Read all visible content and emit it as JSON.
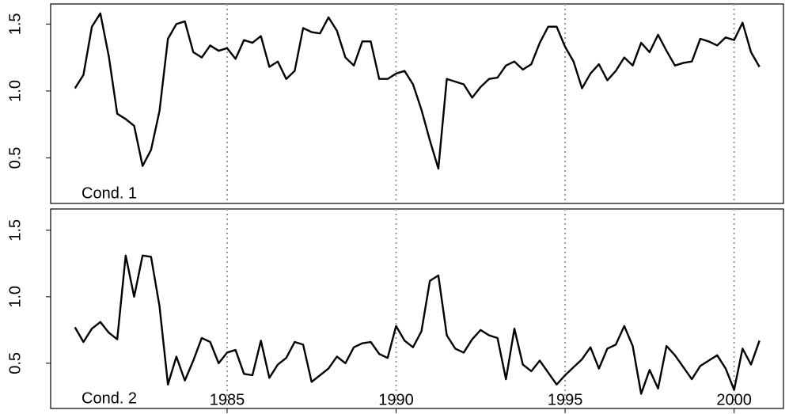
{
  "chart_data": [
    {
      "type": "line",
      "label": "Cond. 1",
      "color": "#000000",
      "x": [
        1980.5,
        1980.75,
        1981,
        1981.25,
        1981.5,
        1981.75,
        1982,
        1982.25,
        1982.5,
        1982.75,
        1983,
        1983.25,
        1983.5,
        1983.75,
        1984,
        1984.25,
        1984.5,
        1984.75,
        1985,
        1985.25,
        1985.5,
        1985.75,
        1986,
        1986.25,
        1986.5,
        1986.75,
        1987,
        1987.25,
        1987.5,
        1987.75,
        1988,
        1988.25,
        1988.5,
        1988.75,
        1989,
        1989.25,
        1989.5,
        1989.75,
        1990,
        1990.25,
        1990.5,
        1990.75,
        1991,
        1991.25,
        1991.5,
        1991.75,
        1992,
        1992.25,
        1992.5,
        1992.75,
        1993,
        1993.25,
        1993.5,
        1993.75,
        1994,
        1994.25,
        1994.5,
        1994.75,
        1995,
        1995.25,
        1995.5,
        1995.75,
        1996,
        1996.25,
        1996.5,
        1996.75,
        1997,
        1997.25,
        1997.5,
        1997.75,
        1998,
        1998.25,
        1998.5,
        1998.75,
        1999,
        1999.25,
        1999.5,
        1999.75,
        2000,
        2000.25,
        2000.5,
        2000.75
      ],
      "values": [
        1.02,
        1.12,
        1.48,
        1.58,
        1.26,
        0.83,
        0.79,
        0.74,
        0.44,
        0.56,
        0.85,
        1.39,
        1.5,
        1.52,
        1.29,
        1.25,
        1.34,
        1.3,
        1.32,
        1.24,
        1.38,
        1.36,
        1.41,
        1.18,
        1.22,
        1.09,
        1.15,
        1.47,
        1.44,
        1.43,
        1.55,
        1.45,
        1.25,
        1.19,
        1.37,
        1.37,
        1.09,
        1.09,
        1.13,
        1.15,
        1.05,
        0.86,
        0.63,
        0.42,
        1.09,
        1.07,
        1.05,
        0.95,
        1.03,
        1.09,
        1.1,
        1.19,
        1.22,
        1.16,
        1.2,
        1.36,
        1.48,
        1.48,
        1.33,
        1.22,
        1.02,
        1.13,
        1.2,
        1.08,
        1.15,
        1.25,
        1.19,
        1.36,
        1.29,
        1.42,
        1.3,
        1.19,
        1.21,
        1.22,
        1.39,
        1.37,
        1.34,
        1.4,
        1.38,
        1.51,
        1.29,
        1.18
      ],
      "xlim": [
        1979.78,
        2001.46
      ],
      "xticks": [
        1985,
        1990,
        1995,
        2000
      ],
      "ylim": [
        0.16,
        1.65
      ],
      "yticks": [
        0.5,
        {
          "value": 1,
          "label": "1.0"
        },
        1.5
      ],
      "grid": "x-dotted"
    },
    {
      "type": "line",
      "label": "Cond. 2",
      "color": "#000000",
      "x": [
        1980.5,
        1980.75,
        1981,
        1981.25,
        1981.5,
        1981.75,
        1982,
        1982.25,
        1982.5,
        1982.75,
        1983,
        1983.25,
        1983.5,
        1983.75,
        1984,
        1984.25,
        1984.5,
        1984.75,
        1985,
        1985.25,
        1985.5,
        1985.75,
        1986,
        1986.25,
        1986.5,
        1986.75,
        1987,
        1987.25,
        1987.5,
        1987.75,
        1988,
        1988.25,
        1988.5,
        1988.75,
        1989,
        1989.25,
        1989.5,
        1989.75,
        1990,
        1990.25,
        1990.5,
        1990.75,
        1991,
        1991.25,
        1991.5,
        1991.75,
        1992,
        1992.25,
        1992.5,
        1992.75,
        1993,
        1993.25,
        1993.5,
        1993.75,
        1994,
        1994.25,
        1994.5,
        1994.75,
        1995,
        1995.25,
        1995.5,
        1995.75,
        1996,
        1996.25,
        1996.5,
        1996.75,
        1997,
        1997.25,
        1997.5,
        1997.75,
        1998,
        1998.25,
        1998.5,
        1998.75,
        1999,
        1999.25,
        1999.5,
        1999.75,
        2000,
        2000.25,
        2000.5,
        2000.75
      ],
      "values": [
        0.77,
        0.66,
        0.76,
        0.81,
        0.73,
        0.68,
        1.31,
        1.0,
        1.31,
        1.3,
        0.93,
        0.34,
        0.55,
        0.37,
        0.52,
        0.69,
        0.66,
        0.5,
        0.58,
        0.6,
        0.42,
        0.41,
        0.67,
        0.39,
        0.49,
        0.54,
        0.66,
        0.64,
        0.36,
        0.41,
        0.46,
        0.55,
        0.5,
        0.62,
        0.65,
        0.66,
        0.57,
        0.54,
        0.78,
        0.67,
        0.62,
        0.74,
        1.12,
        1.16,
        0.71,
        0.61,
        0.58,
        0.68,
        0.75,
        0.71,
        0.69,
        0.38,
        0.76,
        0.49,
        0.44,
        0.52,
        0.43,
        0.34,
        0.41,
        0.47,
        0.53,
        0.62,
        0.46,
        0.61,
        0.64,
        0.78,
        0.63,
        0.27,
        0.45,
        0.31,
        0.63,
        0.56,
        0.47,
        0.38,
        0.48,
        0.52,
        0.56,
        0.46,
        0.3,
        0.61,
        0.49,
        0.67
      ],
      "xlim": [
        1979.78,
        2001.46
      ],
      "xticks": [
        1985,
        1990,
        1995,
        2000
      ],
      "ylim": [
        0.16,
        1.66
      ],
      "yticks": [
        0.5,
        {
          "value": 1,
          "label": "1.0"
        },
        1.5
      ],
      "grid": "x-dotted"
    }
  ]
}
